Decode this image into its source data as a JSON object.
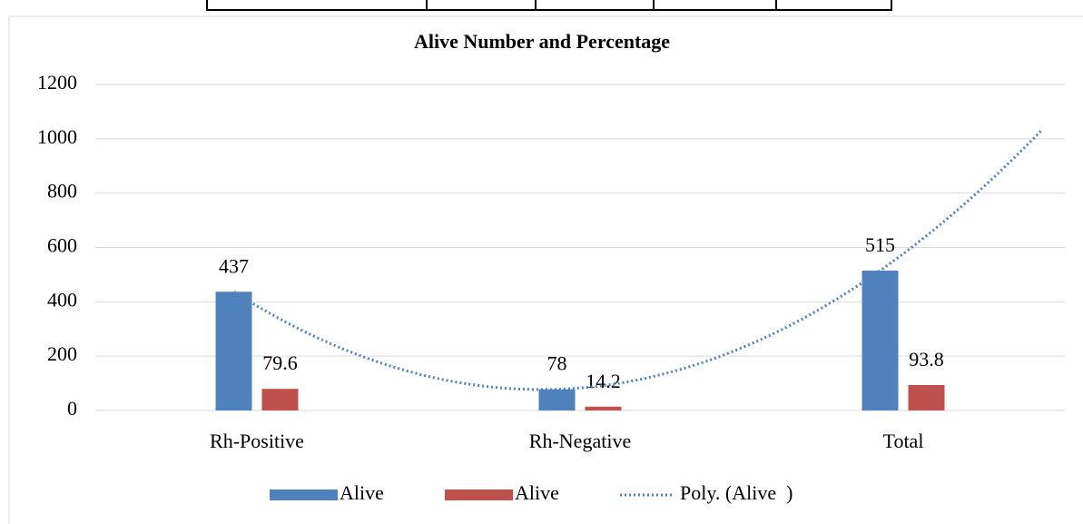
{
  "chart_data": {
    "type": "bar",
    "title": "Alive Number and Percentage",
    "categories": [
      "Rh-Positive",
      "Rh-Negative",
      "Total"
    ],
    "series": [
      {
        "name": "Alive",
        "color": "#4f81bd",
        "values": [
          437,
          78,
          515
        ]
      },
      {
        "name": "Alive",
        "color": "#c0504d",
        "values": [
          79.6,
          14.2,
          93.8
        ]
      }
    ],
    "trendline": {
      "name": "Poly. (Alive  )",
      "series": 0,
      "order": 2,
      "forward": 0.5,
      "color": "#4f81bd"
    },
    "ylim": [
      0,
      1200
    ],
    "yticks": [
      0,
      200,
      400,
      600,
      800,
      1000,
      1200
    ],
    "grid": true,
    "legend": "bottom"
  }
}
